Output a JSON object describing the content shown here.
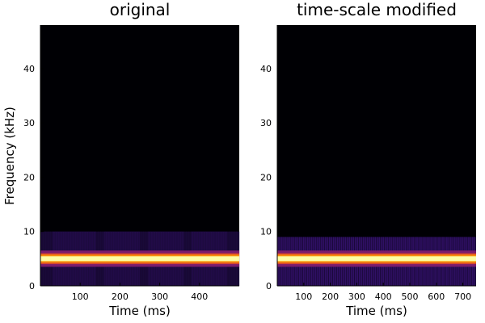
{
  "colors": {
    "background": "#000004",
    "mid_band": "#7a1c6d",
    "outer_band": "#d4472f",
    "hot_band": "#f98e09",
    "peak": "#fcffa4",
    "haze": "#2c0f5e",
    "haze_dim": "#1a0c3a"
  },
  "chart_data": [
    {
      "type": "heatmap",
      "title": "original",
      "xlabel": "Time (ms)",
      "ylabel": "Frequency (kHz)",
      "xlim": [
        0,
        500
      ],
      "ylim": [
        0,
        48
      ],
      "xticks": [
        100,
        200,
        300,
        400
      ],
      "yticks": [
        0,
        10,
        20,
        30,
        40
      ],
      "colormap": "inferno",
      "grid": false,
      "tone_frequency_khz": 5,
      "harmonic_band_khz": [
        0,
        10
      ],
      "segment_boundaries_ms": [
        30,
        140,
        160,
        250,
        270,
        360,
        380,
        470
      ],
      "background": "black"
    },
    {
      "type": "heatmap",
      "title": "time-scale modified",
      "xlabel": "Time (ms)",
      "ylabel": "",
      "xlim": [
        0,
        750
      ],
      "ylim": [
        0,
        48
      ],
      "xticks": [
        100,
        200,
        300,
        400,
        500,
        600,
        700
      ],
      "yticks": [
        0,
        10,
        20,
        30,
        40
      ],
      "colormap": "inferno",
      "grid": false,
      "tone_frequency_khz": 5,
      "harmonic_band_khz": [
        0,
        9
      ],
      "stripe_period_ms": 7.5,
      "background": "black"
    }
  ]
}
